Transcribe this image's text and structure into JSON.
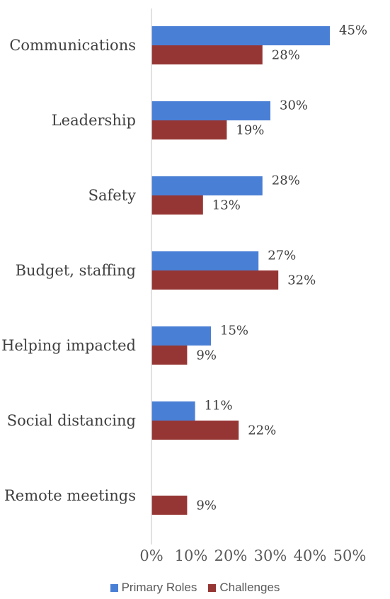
{
  "chart_data": {
    "type": "bar",
    "orientation": "horizontal",
    "categories": [
      "Communications",
      "Leadership",
      "Safety",
      "Budget, staffing",
      "Helping impacted",
      "Social distancing",
      "Remote meetings"
    ],
    "series": [
      {
        "name": "Primary Roles",
        "color": "#4a7fd6",
        "values": [
          45,
          30,
          28,
          27,
          15,
          11,
          null
        ],
        "labels": [
          "45%",
          "30%",
          "28%",
          "27%",
          "15%",
          "11%",
          ""
        ]
      },
      {
        "name": "Challenges",
        "color": "#963634",
        "values": [
          28,
          19,
          13,
          32,
          9,
          22,
          9
        ],
        "labels": [
          "28%",
          "19%",
          "13%",
          "32%",
          "9%",
          "22%",
          "9%"
        ]
      }
    ],
    "x_ticks": [
      "0%",
      "10%",
      "20%",
      "30%",
      "40%",
      "50%"
    ],
    "xlim": [
      0,
      50
    ],
    "grid": false,
    "legend_position": "bottom"
  }
}
